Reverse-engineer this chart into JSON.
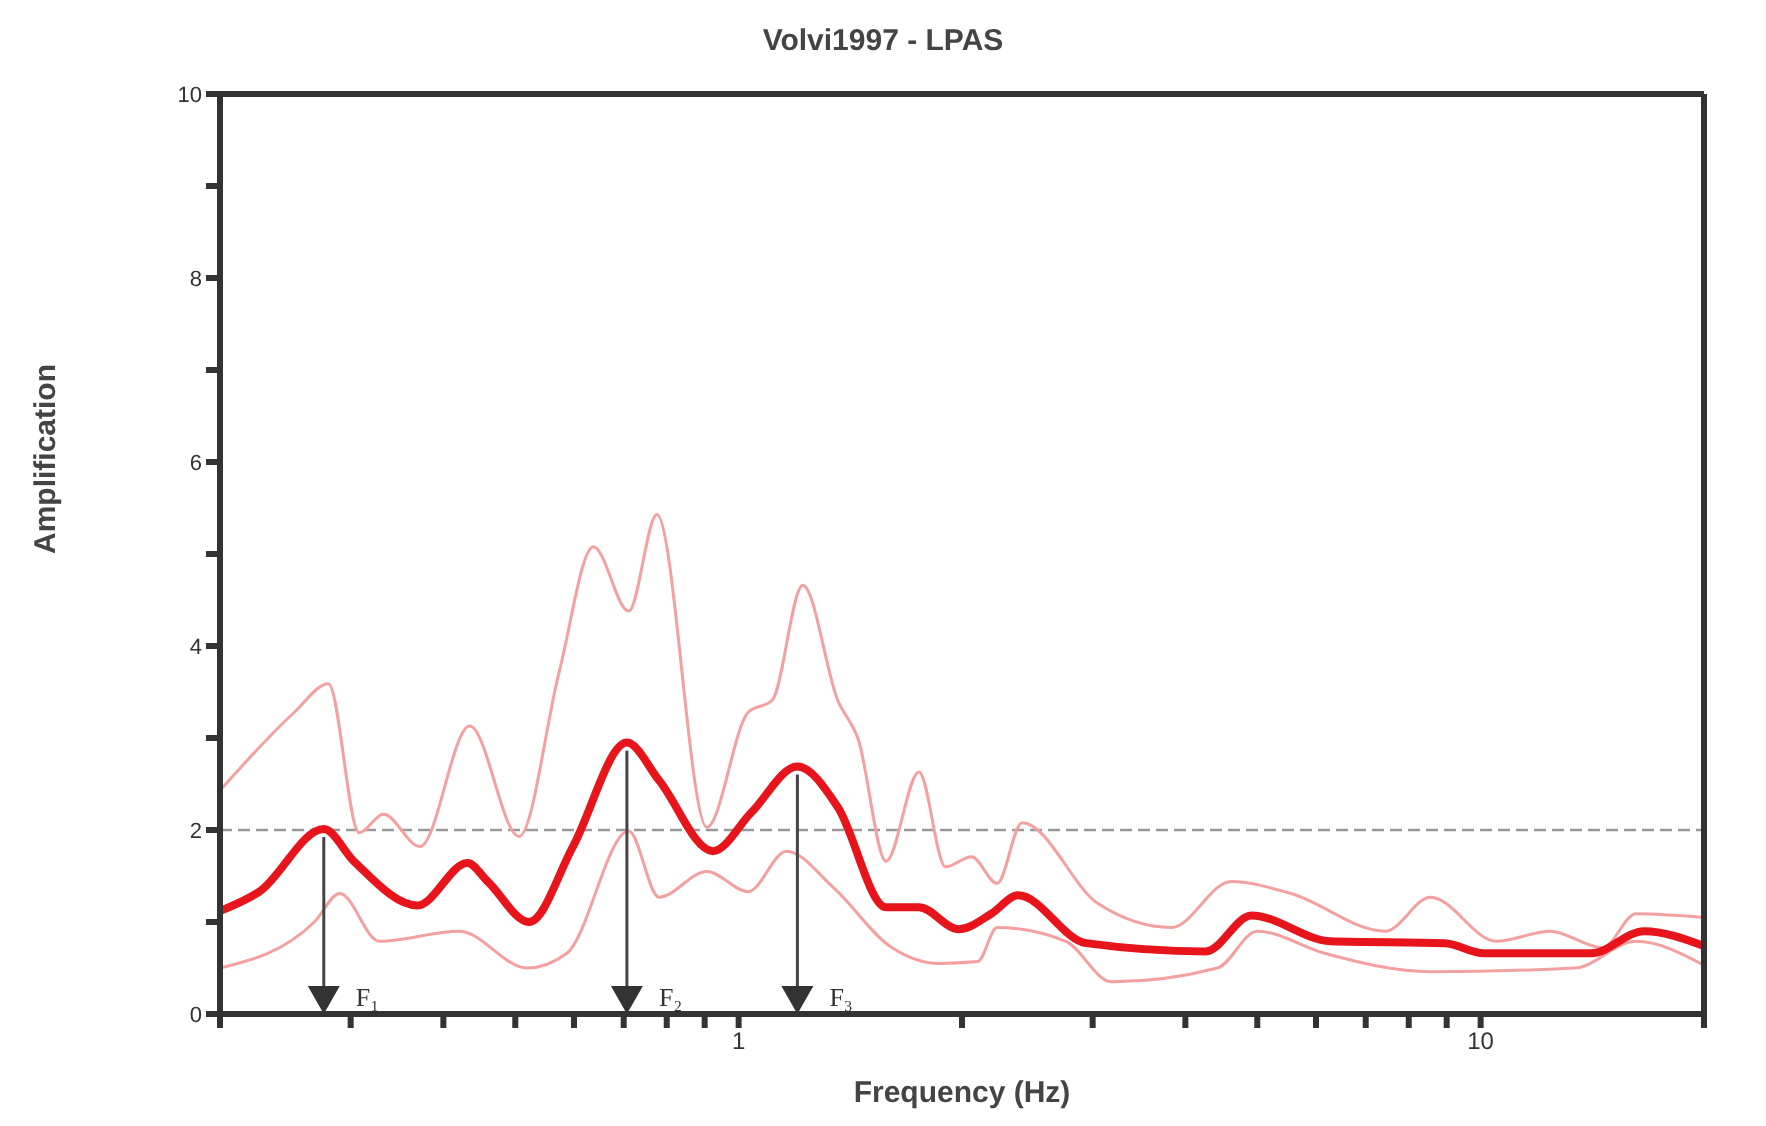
{
  "chart_data": {
    "type": "line",
    "title": "Volvi1997 - LPAS",
    "xlabel": "Frequency (Hz)",
    "ylabel": "Amplification",
    "log": "x",
    "marker": "none",
    "line_style": "solid",
    "xlim": [
      0.2,
      20
    ],
    "ylim": [
      0,
      10
    ],
    "xticks": [
      {
        "value": 0.2,
        "label": null
      },
      {
        "value": 0.3,
        "label": null
      },
      {
        "value": 0.4,
        "label": null
      },
      {
        "value": 0.5,
        "label": null
      },
      {
        "value": 0.6,
        "label": null
      },
      {
        "value": 0.7,
        "label": null
      },
      {
        "value": 0.8,
        "label": null
      },
      {
        "value": 0.9,
        "label": null
      },
      1,
      {
        "value": 2,
        "label": null
      },
      {
        "value": 3,
        "label": null
      },
      {
        "value": 4,
        "label": null
      },
      {
        "value": 5,
        "label": null
      },
      {
        "value": 6,
        "label": null
      },
      {
        "value": 7,
        "label": null
      },
      {
        "value": 8,
        "label": null
      },
      {
        "value": 9,
        "label": null
      },
      10,
      {
        "value": 20,
        "label": null
      }
    ],
    "yticks": [
      0,
      {
        "value": 1,
        "label": null
      },
      2,
      {
        "value": 3,
        "label": null
      },
      4,
      {
        "value": 5,
        "label": null
      },
      6,
      {
        "value": 7,
        "label": null
      },
      8,
      {
        "value": 9,
        "label": null
      },
      10
    ],
    "series": [
      {
        "color": "#f4a0a0",
        "x": [
          0.2,
          0.252,
          0.28,
          0.308,
          0.332,
          0.372,
          0.434,
          0.506,
          0.573,
          0.637,
          0.711,
          0.776,
          0.906,
          1.03,
          1.11,
          1.22,
          1.36,
          1.45,
          1.58,
          1.75,
          1.9,
          2.06,
          2.23,
          2.41,
          3.05,
          3.83,
          4.61,
          5.55,
          7.44,
          8.56,
          10.5,
          12.4,
          14.6,
          16.2,
          20
        ],
        "values": [
          2.43,
          3.28,
          3.59,
          1.97,
          2.17,
          1.82,
          3.13,
          1.93,
          3.72,
          5.08,
          4.38,
          5.43,
          2.03,
          3.28,
          3.41,
          4.66,
          3.41,
          2.98,
          1.66,
          2.63,
          1.6,
          1.71,
          1.42,
          2.08,
          1.2,
          0.94,
          1.44,
          1.31,
          0.9,
          1.27,
          0.79,
          0.9,
          0.72,
          1.09,
          1.05
        ]
      },
      {
        "color": "#f4a0a0",
        "x": [
          0.2,
          0.268,
          0.29,
          0.328,
          0.42,
          0.519,
          0.587,
          0.711,
          0.781,
          0.906,
          1.03,
          1.16,
          1.34,
          1.61,
          1.86,
          2.1,
          2.23,
          2.76,
          3.18,
          4.42,
          5.0,
          6.16,
          8.56,
          13.4,
          16.2,
          20
        ],
        "values": [
          0.5,
          1.0,
          1.31,
          0.79,
          0.9,
          0.5,
          0.66,
          1.99,
          1.27,
          1.55,
          1.33,
          1.77,
          1.38,
          0.72,
          0.55,
          0.57,
          0.94,
          0.79,
          0.35,
          0.5,
          0.9,
          0.66,
          0.46,
          0.5,
          0.79,
          0.53
        ]
      },
      {
        "color": "#e8141c",
        "x": [
          0.2,
          0.226,
          0.276,
          0.303,
          0.369,
          0.431,
          0.459,
          0.522,
          0.598,
          0.707,
          0.781,
          0.923,
          1.04,
          1.2,
          1.36,
          1.58,
          1.75,
          1.98,
          2.19,
          2.38,
          2.94,
          4.26,
          4.91,
          6.28,
          8.95,
          10.1,
          14.1,
          16.6,
          20
        ],
        "values": [
          1.12,
          1.33,
          2.01,
          1.66,
          1.18,
          1.64,
          1.44,
          1.0,
          1.82,
          2.95,
          2.54,
          1.77,
          2.19,
          2.69,
          2.25,
          1.16,
          1.16,
          0.92,
          1.09,
          1.29,
          0.77,
          0.68,
          1.07,
          0.79,
          0.77,
          0.66,
          0.66,
          0.9,
          0.74
        ]
      }
    ],
    "ref_lines": [
      {
        "axis": "y",
        "value": 2,
        "color": "#999999",
        "line_style": "dashed"
      }
    ],
    "annotations": [
      {
        "text": "F₁",
        "x": 0.276,
        "y": 2.01
      },
      {
        "text": "F₂",
        "x": 0.707,
        "y": 2.95
      },
      {
        "text": "F₃",
        "x": 1.2,
        "y": 2.69
      }
    ]
  }
}
